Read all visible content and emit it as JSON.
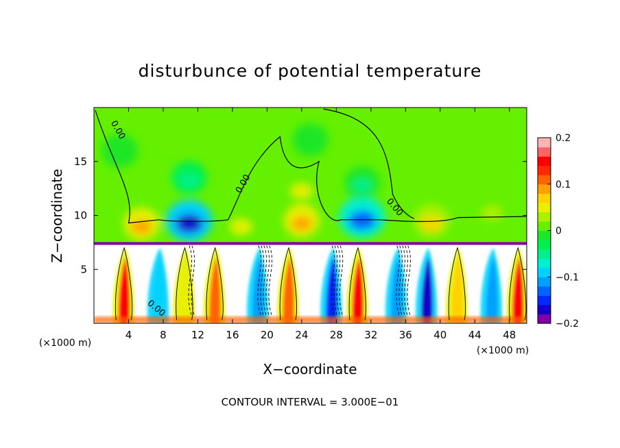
{
  "chart_data": {
    "type": "heatmap",
    "title": "disturbunce of potential temperature",
    "xlabel": "X−coordinate",
    "ylabel": "Z−coordinate",
    "x_unit_left": "(×1000 m)",
    "x_unit_right": "(×1000 m)",
    "x_range": [
      0,
      50
    ],
    "z_range": [
      0,
      20
    ],
    "x_ticks": [
      4,
      8,
      12,
      16,
      20,
      24,
      28,
      32,
      36,
      40,
      44,
      48
    ],
    "x_tick_labels": [
      "4",
      "8",
      "12",
      "16",
      "20",
      "24",
      "28",
      "32",
      "36",
      "40",
      "44",
      "48"
    ],
    "z_ticks": [
      5,
      10,
      15
    ],
    "z_tick_labels": [
      "5",
      "10",
      "15"
    ],
    "colorbar": {
      "min": -0.2,
      "max": 0.2,
      "tick_values": [
        0.2,
        0.1,
        0,
        -0.1,
        -0.2
      ],
      "tick_labels": [
        "0.2",
        "0.1",
        "0",
        "−0.1",
        "−0.2"
      ],
      "colors": [
        "#7f00a8",
        "#1400c8",
        "#0028ff",
        "#0064ff",
        "#00a0ff",
        "#00d2ff",
        "#00f0d2",
        "#00f08c",
        "#00f050",
        "#1ee628",
        "#64f000",
        "#aaf000",
        "#e6f000",
        "#ffd200",
        "#ffa000",
        "#ff6400",
        "#ff2800",
        "#ff0000",
        "#ff6464",
        "#ffb4b4"
      ]
    },
    "contour_labels": [
      "0.00",
      "0.00",
      "0.00",
      "0.00"
    ],
    "contour_interval_text": "CONTOUR INTERVAL =  3.000E−01",
    "regions": {
      "upper_layer_z": [
        7.5,
        20
      ],
      "upper_background_value": 0.02,
      "boundary_z": 7.4,
      "lower_layer_z": [
        0,
        7.4
      ],
      "lower_background_value": 0.3
    },
    "upper_anomalies": [
      {
        "x": 5.5,
        "z": 9.2,
        "value": 0.08
      },
      {
        "x": 11,
        "z": 9.5,
        "value": -0.17
      },
      {
        "x": 11,
        "z": 13.5,
        "value": -0.05
      },
      {
        "x": 17,
        "z": 9.2,
        "value": 0.04
      },
      {
        "x": 24,
        "z": 9.5,
        "value": 0.08
      },
      {
        "x": 24,
        "z": 12.5,
        "value": 0.04
      },
      {
        "x": 31,
        "z": 9.8,
        "value": -0.14
      },
      {
        "x": 31,
        "z": 13.0,
        "value": -0.04
      },
      {
        "x": 39,
        "z": 9.5,
        "value": 0.07
      },
      {
        "x": 46,
        "z": 10.5,
        "value": 0.03
      },
      {
        "x": 3,
        "z": 16.0,
        "value": -0.02
      },
      {
        "x": 25,
        "z": 17.0,
        "value": -0.01
      }
    ],
    "lower_bands": [
      {
        "x": 3.5,
        "value": 0.15
      },
      {
        "x": 7.5,
        "value": -0.1
      },
      {
        "x": 10.5,
        "value": 0.05
      },
      {
        "x": 14,
        "value": 0.12
      },
      {
        "x": 19,
        "value": -0.12
      },
      {
        "x": 22.5,
        "value": 0.1
      },
      {
        "x": 27.5,
        "value": -0.15
      },
      {
        "x": 30.5,
        "value": 0.15
      },
      {
        "x": 35,
        "value": -0.12
      },
      {
        "x": 38.5,
        "value": -0.18
      },
      {
        "x": 42,
        "value": 0.06
      },
      {
        "x": 46,
        "value": -0.12
      },
      {
        "x": 49,
        "value": 0.15
      }
    ]
  }
}
